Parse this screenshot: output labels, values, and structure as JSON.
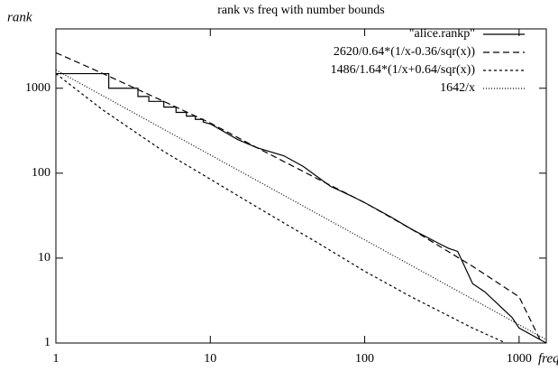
{
  "chart_data": {
    "type": "line",
    "title": "rank vs freq with number bounds",
    "x_label": "freq",
    "y_label": "rank",
    "xscale": "log",
    "yscale": "log",
    "xlim": [
      1,
      1500
    ],
    "ylim": [
      1,
      5000
    ],
    "xticks": [
      1,
      10,
      100,
      1000
    ],
    "yticks": [
      1,
      10,
      100,
      1000
    ],
    "grid": false,
    "legend": "top-right",
    "series": [
      {
        "name": "\"alice.rankp\"",
        "color": "#000000",
        "dash": "solid",
        "x": [
          1,
          2.2,
          2.2,
          3.4,
          3.4,
          4,
          4,
          5,
          5,
          6,
          6,
          7,
          7,
          8,
          8,
          9,
          9,
          10,
          15,
          20,
          30,
          40,
          60,
          80,
          100,
          150,
          200,
          300,
          350,
          400,
          500,
          600,
          900,
          1000,
          1500
        ],
        "values": [
          1486,
          1486,
          1000,
          1000,
          800,
          800,
          700,
          700,
          600,
          600,
          520,
          520,
          470,
          470,
          430,
          430,
          400,
          380,
          250,
          200,
          160,
          120,
          70,
          55,
          45,
          30,
          22,
          15,
          13,
          12,
          5,
          4,
          2,
          1.5,
          1
        ]
      },
      {
        "name": "2620/0.64*(1/x-0.36/sqr(x))",
        "color": "#000000",
        "dash": "dashed",
        "x": [
          1,
          2,
          5,
          10,
          20,
          50,
          100,
          200,
          500,
          1000,
          1400
        ],
        "values": [
          2620,
          1500,
          700,
          390,
          200,
          85,
          45,
          22,
          8,
          3.5,
          1
        ]
      },
      {
        "name": "1486/1.64*(1/x+0.64/sqr(x))",
        "color": "#000000",
        "dash": "short-dashed",
        "x": [
          1,
          2,
          5,
          10,
          20,
          50,
          100,
          200,
          500,
          820
        ],
        "values": [
          1486,
          560,
          180,
          85,
          40,
          15,
          7,
          3.5,
          1.5,
          1
        ]
      },
      {
        "name": "1642/x",
        "color": "#000000",
        "dash": "dotted",
        "x": [
          1,
          10,
          100,
          1000,
          1500
        ],
        "values": [
          1642,
          164.2,
          16.42,
          1.642,
          1.095
        ]
      }
    ]
  }
}
